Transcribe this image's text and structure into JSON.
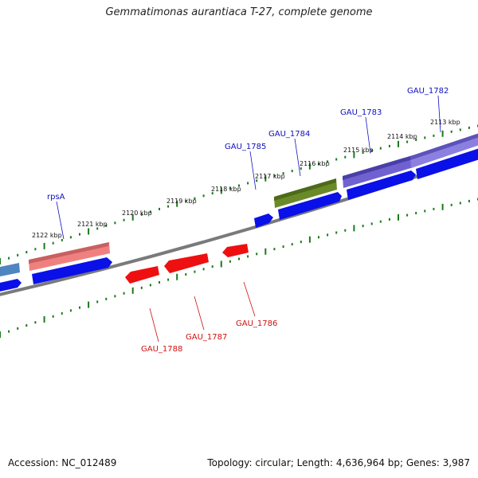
{
  "title": "Gemmatimonas aurantiaca T-27, complete genome",
  "footer": {
    "accession": "Accession: NC_012489",
    "topology": "Topology: circular; Length: 4,636,964 bp; Genes: 3,987"
  },
  "colors": {
    "backbone": "#7a7a7a",
    "tick": "#1a7a1a",
    "forward_label": "#1010c0",
    "reverse_label": "#d01010",
    "cds": "#0a10e8",
    "reverse_cds": "#ee1010"
  },
  "scale_ticks": [
    "2113 kbp",
    "2114 kbp",
    "2115 kbp",
    "2116 kbp",
    "2117 kbp",
    "2118 kbp",
    "2119 kbp",
    "2120 kbp",
    "2121 kbp",
    "2122 kbp"
  ],
  "genes_forward": [
    "GAU_1782",
    "GAU_1783",
    "GAU_1784",
    "GAU_1785",
    "rpsA"
  ],
  "genes_reverse": [
    "GAU_1786",
    "GAU_1787",
    "GAU_1788"
  ]
}
